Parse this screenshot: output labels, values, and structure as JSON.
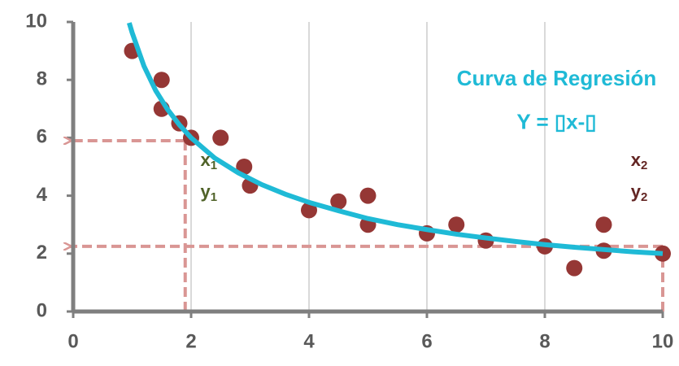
{
  "chart_data": {
    "type": "scatter",
    "x": [
      1,
      1.5,
      1.5,
      1.8,
      2,
      2.5,
      2.9,
      3,
      4,
      4.5,
      5,
      5,
      6,
      6.5,
      7,
      8,
      8.5,
      9,
      9,
      10
    ],
    "series": [
      {
        "color": "#953735",
        "values": [
          9,
          8,
          7,
          6.5,
          6,
          6,
          5,
          4.35,
          3.5,
          3.8,
          4,
          3,
          2.7,
          3,
          2.45,
          2.25,
          1.5,
          3,
          2.1,
          2
        ]
      }
    ],
    "curve": {
      "color": "#1fbad6",
      "x": [
        0.95,
        1,
        1.2,
        1.4,
        1.6,
        1.8,
        2,
        2.4,
        2.8,
        3.2,
        3.6,
        4,
        4.5,
        5,
        5.5,
        6,
        6.5,
        7,
        7.5,
        8,
        8.5,
        9,
        9.5,
        10
      ],
      "values": [
        9.97,
        9.63,
        8.48,
        7.63,
        6.98,
        6.45,
        6.0,
        5.3,
        4.79,
        4.38,
        4.05,
        3.77,
        3.48,
        3.21,
        3.0,
        2.83,
        2.67,
        2.54,
        2.42,
        2.31,
        2.22,
        2.14,
        2.06,
        2.0
      ]
    },
    "guides": [
      {
        "x": 1.9,
        "y": 5.9,
        "color": "#d99694"
      },
      {
        "x": 10,
        "y": 2.25,
        "color": "#d99694"
      }
    ],
    "annotations": [
      {
        "text": "Curva de Regresión",
        "x": 8.2,
        "y": 8.0,
        "color": "#1fbad6"
      },
      {
        "text": "Y = ▯x-▯",
        "x": 8.2,
        "y": 6.5,
        "color": "#1fbad6"
      },
      {
        "text": "x",
        "sub": "1",
        "x": 2.3,
        "y": 5.2,
        "color": "#4f6228"
      },
      {
        "text": "y",
        "sub": "1",
        "x": 2.3,
        "y": 4.1,
        "color": "#4f6228"
      },
      {
        "text": "x",
        "sub": "2",
        "x": 9.6,
        "y": 5.2,
        "color": "#632523"
      },
      {
        "text": "y",
        "sub": "2",
        "x": 9.6,
        "y": 4.1,
        "color": "#632523"
      }
    ],
    "xlim": [
      0,
      10
    ],
    "xticks": [
      0,
      2,
      4,
      6,
      8,
      10
    ],
    "ylim": [
      0,
      10
    ],
    "yticks": [
      0,
      2,
      4,
      6,
      8,
      10
    ],
    "grid": true
  }
}
